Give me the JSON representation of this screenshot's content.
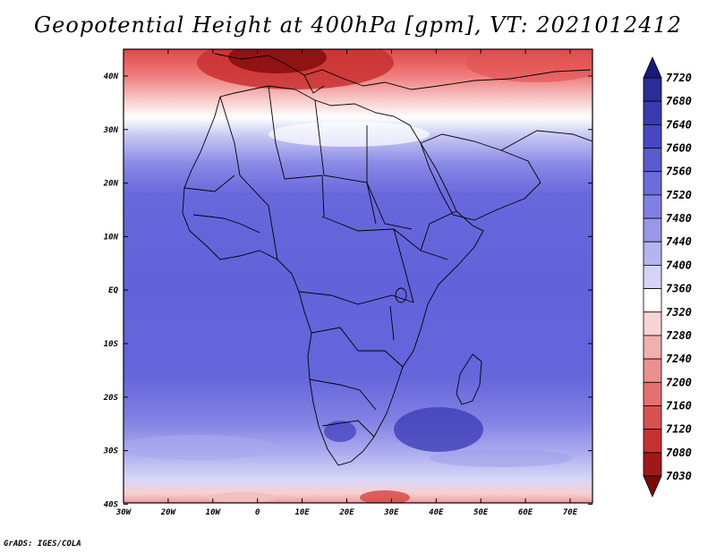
{
  "title": "Geopotential Height at 400hPa [gpm], VT: 2021012412",
  "credit": "GrADS: IGES/COLA",
  "map": {
    "lon_ticks": [
      "30W",
      "20W",
      "10W",
      "0",
      "10E",
      "20E",
      "30E",
      "40E",
      "50E",
      "60E",
      "70E"
    ],
    "lat_ticks": [
      "40N",
      "30N",
      "20N",
      "10N",
      "EQ",
      "10S",
      "20S",
      "30S",
      "40S"
    ],
    "lon_range": [
      -30,
      75
    ],
    "lat_range": [
      -40,
      45
    ]
  },
  "colorbar": {
    "levels": [
      "7720",
      "7680",
      "7640",
      "7600",
      "7560",
      "7520",
      "7480",
      "7440",
      "7400",
      "7360",
      "7320",
      "7280",
      "7240",
      "7200",
      "7160",
      "7120",
      "7080",
      "7030"
    ],
    "colors": [
      "#1a1a7a",
      "#2b2b99",
      "#3a3ab0",
      "#4747c2",
      "#5a5ad2",
      "#6b6bdb",
      "#8080e3",
      "#9898ea",
      "#b4b4f1",
      "#d4d4f7",
      "#ffffff",
      "#f7d4d4",
      "#f1b0b0",
      "#ea9090",
      "#e37070",
      "#d95050",
      "#c93030",
      "#a01818",
      "#7a0a0a"
    ]
  }
}
